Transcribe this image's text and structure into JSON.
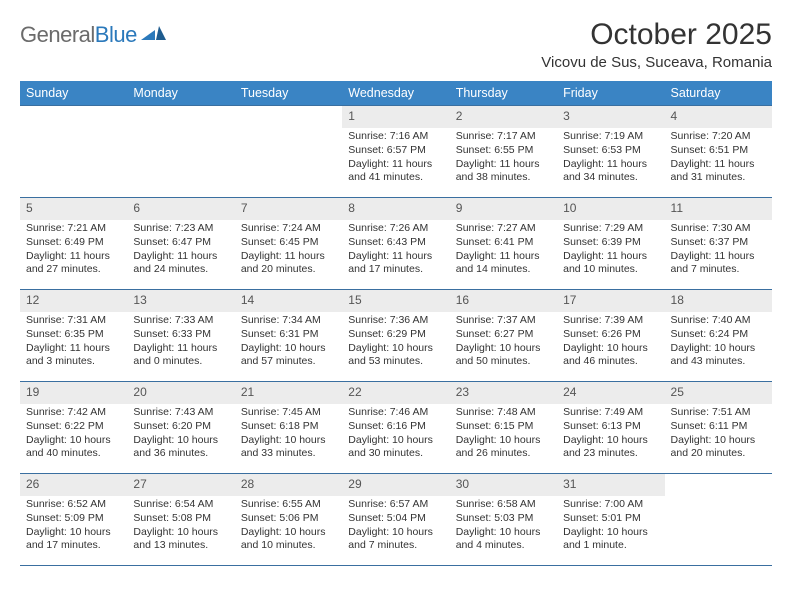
{
  "brand": {
    "part1": "General",
    "part2": "Blue"
  },
  "title": "October 2025",
  "location": "Vicovu de Sus, Suceava, Romania",
  "colors": {
    "header_bg": "#3a84c4",
    "header_text": "#ffffff",
    "daynum_bg": "#ececec",
    "rule": "#3a6fa0",
    "brand_gray": "#6b6b6b",
    "brand_blue": "#2b79bb"
  },
  "weekdays": [
    "Sunday",
    "Monday",
    "Tuesday",
    "Wednesday",
    "Thursday",
    "Friday",
    "Saturday"
  ],
  "weeks": [
    [
      null,
      null,
      null,
      {
        "n": "1",
        "sr": "Sunrise: 7:16 AM",
        "ss": "Sunset: 6:57 PM",
        "d1": "Daylight: 11 hours",
        "d2": "and 41 minutes."
      },
      {
        "n": "2",
        "sr": "Sunrise: 7:17 AM",
        "ss": "Sunset: 6:55 PM",
        "d1": "Daylight: 11 hours",
        "d2": "and 38 minutes."
      },
      {
        "n": "3",
        "sr": "Sunrise: 7:19 AM",
        "ss": "Sunset: 6:53 PM",
        "d1": "Daylight: 11 hours",
        "d2": "and 34 minutes."
      },
      {
        "n": "4",
        "sr": "Sunrise: 7:20 AM",
        "ss": "Sunset: 6:51 PM",
        "d1": "Daylight: 11 hours",
        "d2": "and 31 minutes."
      }
    ],
    [
      {
        "n": "5",
        "sr": "Sunrise: 7:21 AM",
        "ss": "Sunset: 6:49 PM",
        "d1": "Daylight: 11 hours",
        "d2": "and 27 minutes."
      },
      {
        "n": "6",
        "sr": "Sunrise: 7:23 AM",
        "ss": "Sunset: 6:47 PM",
        "d1": "Daylight: 11 hours",
        "d2": "and 24 minutes."
      },
      {
        "n": "7",
        "sr": "Sunrise: 7:24 AM",
        "ss": "Sunset: 6:45 PM",
        "d1": "Daylight: 11 hours",
        "d2": "and 20 minutes."
      },
      {
        "n": "8",
        "sr": "Sunrise: 7:26 AM",
        "ss": "Sunset: 6:43 PM",
        "d1": "Daylight: 11 hours",
        "d2": "and 17 minutes."
      },
      {
        "n": "9",
        "sr": "Sunrise: 7:27 AM",
        "ss": "Sunset: 6:41 PM",
        "d1": "Daylight: 11 hours",
        "d2": "and 14 minutes."
      },
      {
        "n": "10",
        "sr": "Sunrise: 7:29 AM",
        "ss": "Sunset: 6:39 PM",
        "d1": "Daylight: 11 hours",
        "d2": "and 10 minutes."
      },
      {
        "n": "11",
        "sr": "Sunrise: 7:30 AM",
        "ss": "Sunset: 6:37 PM",
        "d1": "Daylight: 11 hours",
        "d2": "and 7 minutes."
      }
    ],
    [
      {
        "n": "12",
        "sr": "Sunrise: 7:31 AM",
        "ss": "Sunset: 6:35 PM",
        "d1": "Daylight: 11 hours",
        "d2": "and 3 minutes."
      },
      {
        "n": "13",
        "sr": "Sunrise: 7:33 AM",
        "ss": "Sunset: 6:33 PM",
        "d1": "Daylight: 11 hours",
        "d2": "and 0 minutes."
      },
      {
        "n": "14",
        "sr": "Sunrise: 7:34 AM",
        "ss": "Sunset: 6:31 PM",
        "d1": "Daylight: 10 hours",
        "d2": "and 57 minutes."
      },
      {
        "n": "15",
        "sr": "Sunrise: 7:36 AM",
        "ss": "Sunset: 6:29 PM",
        "d1": "Daylight: 10 hours",
        "d2": "and 53 minutes."
      },
      {
        "n": "16",
        "sr": "Sunrise: 7:37 AM",
        "ss": "Sunset: 6:27 PM",
        "d1": "Daylight: 10 hours",
        "d2": "and 50 minutes."
      },
      {
        "n": "17",
        "sr": "Sunrise: 7:39 AM",
        "ss": "Sunset: 6:26 PM",
        "d1": "Daylight: 10 hours",
        "d2": "and 46 minutes."
      },
      {
        "n": "18",
        "sr": "Sunrise: 7:40 AM",
        "ss": "Sunset: 6:24 PM",
        "d1": "Daylight: 10 hours",
        "d2": "and 43 minutes."
      }
    ],
    [
      {
        "n": "19",
        "sr": "Sunrise: 7:42 AM",
        "ss": "Sunset: 6:22 PM",
        "d1": "Daylight: 10 hours",
        "d2": "and 40 minutes."
      },
      {
        "n": "20",
        "sr": "Sunrise: 7:43 AM",
        "ss": "Sunset: 6:20 PM",
        "d1": "Daylight: 10 hours",
        "d2": "and 36 minutes."
      },
      {
        "n": "21",
        "sr": "Sunrise: 7:45 AM",
        "ss": "Sunset: 6:18 PM",
        "d1": "Daylight: 10 hours",
        "d2": "and 33 minutes."
      },
      {
        "n": "22",
        "sr": "Sunrise: 7:46 AM",
        "ss": "Sunset: 6:16 PM",
        "d1": "Daylight: 10 hours",
        "d2": "and 30 minutes."
      },
      {
        "n": "23",
        "sr": "Sunrise: 7:48 AM",
        "ss": "Sunset: 6:15 PM",
        "d1": "Daylight: 10 hours",
        "d2": "and 26 minutes."
      },
      {
        "n": "24",
        "sr": "Sunrise: 7:49 AM",
        "ss": "Sunset: 6:13 PM",
        "d1": "Daylight: 10 hours",
        "d2": "and 23 minutes."
      },
      {
        "n": "25",
        "sr": "Sunrise: 7:51 AM",
        "ss": "Sunset: 6:11 PM",
        "d1": "Daylight: 10 hours",
        "d2": "and 20 minutes."
      }
    ],
    [
      {
        "n": "26",
        "sr": "Sunrise: 6:52 AM",
        "ss": "Sunset: 5:09 PM",
        "d1": "Daylight: 10 hours",
        "d2": "and 17 minutes."
      },
      {
        "n": "27",
        "sr": "Sunrise: 6:54 AM",
        "ss": "Sunset: 5:08 PM",
        "d1": "Daylight: 10 hours",
        "d2": "and 13 minutes."
      },
      {
        "n": "28",
        "sr": "Sunrise: 6:55 AM",
        "ss": "Sunset: 5:06 PM",
        "d1": "Daylight: 10 hours",
        "d2": "and 10 minutes."
      },
      {
        "n": "29",
        "sr": "Sunrise: 6:57 AM",
        "ss": "Sunset: 5:04 PM",
        "d1": "Daylight: 10 hours",
        "d2": "and 7 minutes."
      },
      {
        "n": "30",
        "sr": "Sunrise: 6:58 AM",
        "ss": "Sunset: 5:03 PM",
        "d1": "Daylight: 10 hours",
        "d2": "and 4 minutes."
      },
      {
        "n": "31",
        "sr": "Sunrise: 7:00 AM",
        "ss": "Sunset: 5:01 PM",
        "d1": "Daylight: 10 hours",
        "d2": "and 1 minute."
      },
      null
    ]
  ]
}
